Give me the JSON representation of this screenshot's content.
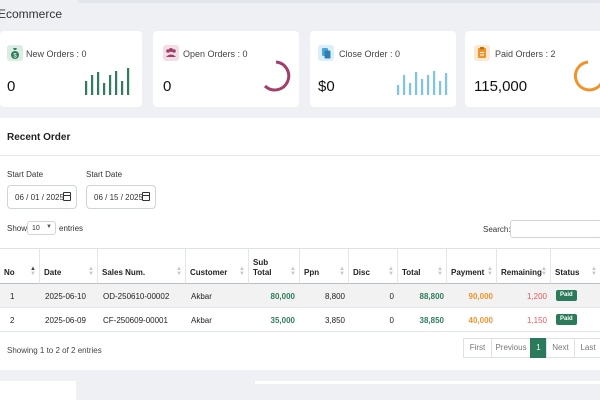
{
  "page_title": "Ecommerce",
  "cards": [
    {
      "label": "New Orders : 0",
      "value": "0",
      "icon": "money-bag-icon",
      "color": "#2e7d5b"
    },
    {
      "label": "Open Orders : 0",
      "value": "0",
      "icon": "users-icon",
      "color": "#a0406a"
    },
    {
      "label": "Close Order : 0",
      "value": "$0",
      "icon": "copy-icon",
      "color": "#4aa6dc"
    },
    {
      "label": "Paid Orders : 2",
      "value": "115,000",
      "icon": "clipboard-icon",
      "color": "#f0932b"
    }
  ],
  "recent_order": {
    "title": "Recent Order",
    "start_date_label_1": "Start Date",
    "start_date_value_1": "06 / 01 / 2025",
    "start_date_label_2": "Start Date",
    "start_date_value_2": "06 / 15 / 2025",
    "show_label": "Show",
    "show_value": "10",
    "entries_label": "entries",
    "search_label": "Search:",
    "columns": [
      "No",
      "Date",
      "Sales Num.",
      "Customer",
      "Sub Total",
      "Ppn",
      "Disc",
      "Total",
      "Payment",
      "Remaining",
      "Status"
    ],
    "rows": [
      {
        "no": "1",
        "date": "2025-06-10",
        "sales": "OD-250610-00002",
        "customer": "Akbar",
        "subtotal": "80,000",
        "ppn": "8,800",
        "disc": "0",
        "total": "88,800",
        "payment": "90,000",
        "remaining": "1,200",
        "status": "Paid"
      },
      {
        "no": "2",
        "date": "2025-06-09",
        "sales": "CF-250609-00001",
        "customer": "Akbar",
        "subtotal": "35,000",
        "ppn": "3,850",
        "disc": "0",
        "total": "38,850",
        "payment": "40,000",
        "remaining": "1,150",
        "status": "Paid"
      }
    ],
    "info": "Showing 1 to 2 of 2 entries",
    "pagination": {
      "first": "First",
      "previous": "Previous",
      "current": "1",
      "next": "Next",
      "last": "Last"
    }
  }
}
